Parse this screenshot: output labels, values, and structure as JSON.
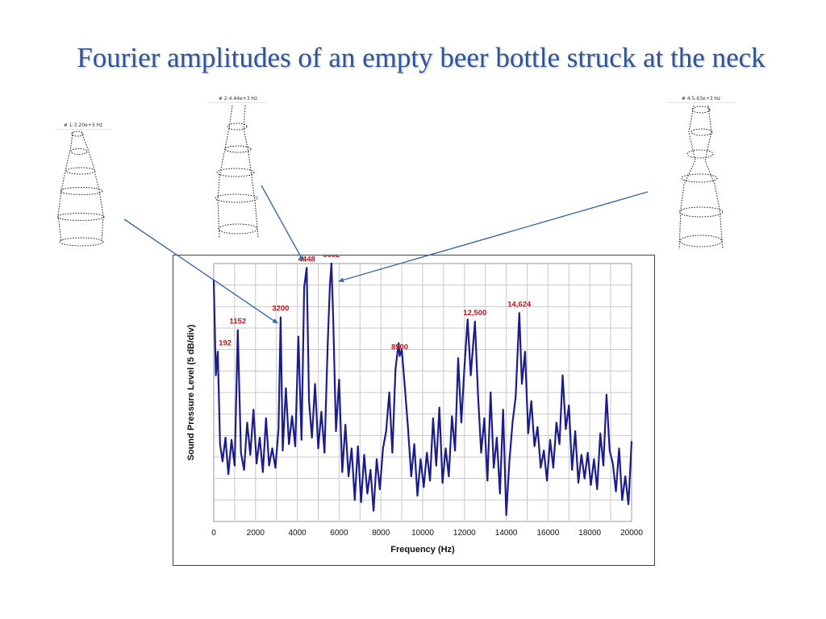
{
  "slide": {
    "title": "Fourier amplitudes of an empty beer bottle struck at the neck"
  },
  "mode_shapes": [
    {
      "label": "# 1:3.20e+3 Hz"
    },
    {
      "label": "# 2:4.44e+3 Hz"
    },
    {
      "label": "# 4:5.63e+3 Hz"
    }
  ],
  "colors": {
    "title": "#2e5597",
    "trace": "#1c1c8c",
    "peak_label": "#c0141c",
    "connector": "#3b6aa8"
  },
  "chart_data": {
    "type": "line",
    "xlabel": "Frequency (Hz)",
    "ylabel": "Sound Pressure Level (5 dB/div)",
    "xlim": [
      0,
      20000
    ],
    "x_ticks": [
      0,
      2000,
      4000,
      6000,
      8000,
      10000,
      12000,
      14000,
      16000,
      18000,
      20000
    ],
    "x_tick_labels": [
      "0",
      "2000",
      "4000",
      "6000",
      "8000",
      "10000",
      "12000",
      "14000",
      "16000",
      "18000",
      "20000"
    ],
    "y_divisions": 12,
    "ylim": [
      0,
      12
    ],
    "grid": true,
    "series": [
      {
        "x": [
          0,
          100,
          192,
          300,
          420,
          560,
          700,
          850,
          1000,
          1152,
          1300,
          1450,
          1600,
          1750,
          1900,
          2050,
          2200,
          2350,
          2500,
          2650,
          2800,
          2950,
          3100,
          3200,
          3300,
          3450,
          3600,
          3750,
          3900,
          4050,
          4200,
          4330,
          4448,
          4560,
          4700,
          4850,
          5000,
          5150,
          5300,
          5450,
          5560,
          5632,
          5720,
          5850,
          6000,
          6150,
          6300,
          6450,
          6600,
          6750,
          6900,
          7050,
          7200,
          7350,
          7500,
          7650,
          7800,
          7950,
          8100,
          8250,
          8400,
          8550,
          8700,
          8850,
          8900,
          9000,
          9150,
          9300,
          9450,
          9600,
          9750,
          9900,
          10050,
          10200,
          10350,
          10500,
          10650,
          10800,
          10950,
          11100,
          11250,
          11400,
          11550,
          11700,
          11850,
          12000,
          12150,
          12300,
          12500,
          12650,
          12800,
          12950,
          13100,
          13250,
          13400,
          13550,
          13700,
          13850,
          14000,
          14150,
          14300,
          14450,
          14624,
          14750,
          14900,
          15050,
          15200,
          15350,
          15500,
          15650,
          15800,
          15950,
          16100,
          16250,
          16400,
          16550,
          16700,
          16850,
          17000,
          17150,
          17300,
          17450,
          17600,
          17750,
          17900,
          18050,
          18200,
          18350,
          18500,
          18650,
          18800,
          18950,
          19100,
          19250,
          19400,
          19550,
          19700,
          19850,
          20000
        ],
        "values": [
          11.2,
          6.8,
          7.9,
          3.6,
          2.8,
          3.9,
          2.2,
          3.8,
          2.6,
          8.9,
          3.2,
          2.4,
          4.6,
          3.1,
          5.2,
          2.7,
          3.9,
          2.3,
          4.8,
          2.6,
          3.4,
          2.5,
          4.3,
          9.5,
          3.3,
          6.2,
          3.6,
          4.9,
          3.5,
          8.6,
          3.8,
          10.9,
          11.8,
          5.6,
          3.9,
          6.4,
          3.4,
          5.1,
          3.2,
          8.2,
          11.0,
          12.0,
          9.4,
          4.2,
          6.6,
          2.3,
          4.5,
          2.1,
          3.4,
          1.0,
          3.5,
          0.9,
          3.1,
          1.3,
          2.4,
          0.5,
          2.9,
          1.5,
          3.4,
          4.2,
          6.0,
          3.2,
          7.1,
          8.3,
          7.7,
          8.0,
          6.2,
          4.3,
          2.1,
          3.6,
          1.2,
          2.9,
          1.6,
          3.2,
          1.9,
          4.8,
          2.6,
          5.3,
          1.8,
          3.4,
          2.1,
          4.9,
          3.3,
          7.6,
          4.6,
          7.2,
          9.4,
          6.8,
          9.3,
          5.9,
          3.2,
          4.8,
          1.9,
          6.0,
          2.5,
          3.9,
          1.3,
          5.2,
          0.3,
          2.8,
          4.6,
          5.8,
          9.7,
          6.4,
          7.9,
          4.1,
          5.6,
          3.5,
          4.4,
          2.5,
          3.3,
          1.9,
          3.8,
          2.5,
          4.6,
          3.6,
          6.8,
          4.3,
          5.4,
          2.4,
          4.2,
          1.8,
          3.1,
          2.0,
          3.2,
          1.7,
          2.9,
          1.5,
          4.1,
          2.6,
          5.9,
          3.3,
          2.7,
          1.4,
          3.4,
          1.0,
          2.1,
          0.8,
          3.7
        ]
      }
    ],
    "annotations": [
      {
        "x": 192,
        "y": 7.9,
        "text": "192"
      },
      {
        "x": 1152,
        "y": 8.9,
        "text": "1152"
      },
      {
        "x": 3200,
        "y": 9.5,
        "text": "3200"
      },
      {
        "x": 4448,
        "y": 11.8,
        "text": "4448"
      },
      {
        "x": 5632,
        "y": 12.0,
        "text": "5632"
      },
      {
        "x": 8900,
        "y": 7.7,
        "text": "8900"
      },
      {
        "x": 12500,
        "y": 9.3,
        "text": "12,500"
      },
      {
        "x": 14624,
        "y": 9.7,
        "text": "14,624"
      }
    ]
  }
}
